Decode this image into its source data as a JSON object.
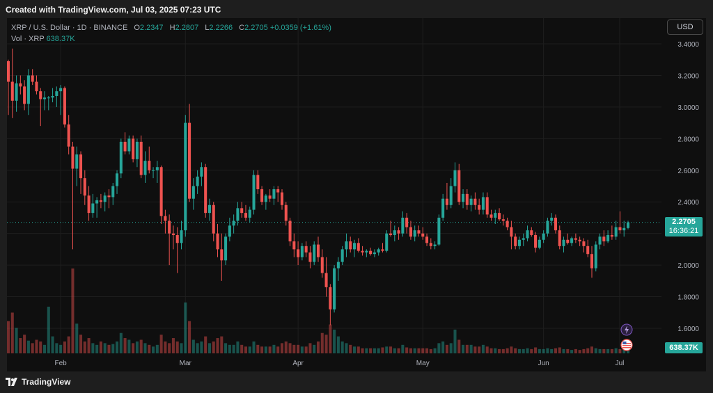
{
  "header": {
    "created": "Created with TradingView.com, Jul 03, 2025 07:23 UTC"
  },
  "legend": {
    "symbol": "XRP / U.S. Dollar · 1D · BINANCE",
    "o_label": "O",
    "o_value": "2.2347",
    "h_label": "H",
    "h_value": "2.2807",
    "l_label": "L",
    "l_value": "2.2266",
    "c_label": "C",
    "c_value": "2.2705",
    "change": "+0.0359 (+1.61%)",
    "vol_label": "Vol · XRP",
    "vol_value": "638.37K"
  },
  "currency_button": "USD",
  "last_price": {
    "price": "2.2705",
    "countdown": "16:36:21"
  },
  "volume_tag": "638.37K",
  "footer": {
    "brand": "TradingView"
  },
  "colors": {
    "up": "#26a69a",
    "down": "#ef5350",
    "background": "#0f0f0f",
    "grid": "#1f1f1f"
  },
  "icons": [
    "tradingview-logo-icon",
    "lightning-icon",
    "us-flag-icon"
  ],
  "chart_data": {
    "type": "candlestick",
    "symbol": "XRP / U.S. Dollar",
    "interval": "1D",
    "exchange": "BINANCE",
    "y_ticks": [
      "3.4000",
      "3.2000",
      "3.0000",
      "2.8000",
      "2.6000",
      "2.4000",
      "2.2000",
      "2.0000",
      "1.8000",
      "1.6000"
    ],
    "x_ticks": [
      "Feb",
      "Mar",
      "Apr",
      "May",
      "Jun",
      "Jul"
    ],
    "ylim": [
      1.45,
      3.5
    ],
    "grid": true,
    "last": 2.2705,
    "candles": [
      [
        3.29,
        3.3,
        2.95,
        3.16
      ],
      [
        3.16,
        3.37,
        2.93,
        3.04
      ],
      [
        3.04,
        3.2,
        2.97,
        3.15
      ],
      [
        3.15,
        3.2,
        3.08,
        3.13
      ],
      [
        3.13,
        3.17,
        2.98,
        3.02
      ],
      [
        3.02,
        3.24,
        2.95,
        3.2
      ],
      [
        3.2,
        3.24,
        3.14,
        3.16
      ],
      [
        3.16,
        3.2,
        3.08,
        3.1
      ],
      [
        3.1,
        3.12,
        2.88,
        3.05
      ],
      [
        3.05,
        3.1,
        2.98,
        3.06
      ],
      [
        3.06,
        3.07,
        2.98,
        3.06
      ],
      [
        3.06,
        3.12,
        3.03,
        3.07
      ],
      [
        3.07,
        3.13,
        3.0,
        3.1
      ],
      [
        3.1,
        3.14,
        2.95,
        3.12
      ],
      [
        3.12,
        3.13,
        2.87,
        2.89
      ],
      [
        2.89,
        2.95,
        2.7,
        2.75
      ],
      [
        2.75,
        2.78,
        2.1,
        2.61
      ],
      [
        2.61,
        2.75,
        2.5,
        2.7
      ],
      [
        2.7,
        2.72,
        2.45,
        2.55
      ],
      [
        2.55,
        2.6,
        2.38,
        2.44
      ],
      [
        2.44,
        2.5,
        2.28,
        2.33
      ],
      [
        2.33,
        2.45,
        2.3,
        2.39
      ],
      [
        2.39,
        2.43,
        2.3,
        2.41
      ],
      [
        2.41,
        2.45,
        2.36,
        2.4
      ],
      [
        2.4,
        2.46,
        2.34,
        2.44
      ],
      [
        2.44,
        2.48,
        2.36,
        2.43
      ],
      [
        2.43,
        2.52,
        2.38,
        2.5
      ],
      [
        2.5,
        2.6,
        2.45,
        2.58
      ],
      [
        2.58,
        2.8,
        2.55,
        2.78
      ],
      [
        2.78,
        2.84,
        2.7,
        2.72
      ],
      [
        2.72,
        2.82,
        2.7,
        2.8
      ],
      [
        2.8,
        2.82,
        2.65,
        2.67
      ],
      [
        2.67,
        2.8,
        2.62,
        2.78
      ],
      [
        2.78,
        2.82,
        2.55,
        2.57
      ],
      [
        2.57,
        2.72,
        2.52,
        2.66
      ],
      [
        2.66,
        2.75,
        2.58,
        2.6
      ],
      [
        2.6,
        2.62,
        2.55,
        2.6
      ],
      [
        2.6,
        2.66,
        2.52,
        2.62
      ],
      [
        2.62,
        2.63,
        2.26,
        2.31
      ],
      [
        2.31,
        2.35,
        2.2,
        2.28
      ],
      [
        2.28,
        2.32,
        2.0,
        2.2
      ],
      [
        2.2,
        2.25,
        2.1,
        2.19
      ],
      [
        2.19,
        2.24,
        1.95,
        2.14
      ],
      [
        2.14,
        2.28,
        2.1,
        2.22
      ],
      [
        2.22,
        2.95,
        2.18,
        2.9
      ],
      [
        2.9,
        3.02,
        2.4,
        2.42
      ],
      [
        2.42,
        2.55,
        2.35,
        2.5
      ],
      [
        2.5,
        2.6,
        2.45,
        2.56
      ],
      [
        2.56,
        2.65,
        2.5,
        2.62
      ],
      [
        2.62,
        2.64,
        2.3,
        2.33
      ],
      [
        2.33,
        2.42,
        2.28,
        2.38
      ],
      [
        2.38,
        2.4,
        2.15,
        2.2
      ],
      [
        2.2,
        2.26,
        2.05,
        2.1
      ],
      [
        2.1,
        2.2,
        1.9,
        2.03
      ],
      [
        2.03,
        2.2,
        2.0,
        2.18
      ],
      [
        2.18,
        2.3,
        2.15,
        2.25
      ],
      [
        2.25,
        2.32,
        2.2,
        2.28
      ],
      [
        2.28,
        2.4,
        2.25,
        2.36
      ],
      [
        2.36,
        2.4,
        2.3,
        2.33
      ],
      [
        2.33,
        2.38,
        2.28,
        2.3
      ],
      [
        2.3,
        2.37,
        2.27,
        2.35
      ],
      [
        2.35,
        2.6,
        2.32,
        2.57
      ],
      [
        2.57,
        2.6,
        2.45,
        2.48
      ],
      [
        2.48,
        2.5,
        2.38,
        2.4
      ],
      [
        2.4,
        2.45,
        2.35,
        2.44
      ],
      [
        2.44,
        2.48,
        2.4,
        2.42
      ],
      [
        2.42,
        2.5,
        2.38,
        2.48
      ],
      [
        2.48,
        2.5,
        2.4,
        2.46
      ],
      [
        2.46,
        2.48,
        2.35,
        2.38
      ],
      [
        2.38,
        2.4,
        2.25,
        2.28
      ],
      [
        2.28,
        2.3,
        2.12,
        2.15
      ],
      [
        2.15,
        2.2,
        2.05,
        2.1
      ],
      [
        2.1,
        2.15,
        2.0,
        2.05
      ],
      [
        2.05,
        2.14,
        2.03,
        2.12
      ],
      [
        2.12,
        2.15,
        2.05,
        2.08
      ],
      [
        2.08,
        2.12,
        1.98,
        2.02
      ],
      [
        2.02,
        2.15,
        2.0,
        2.13
      ],
      [
        2.13,
        2.18,
        2.02,
        2.05
      ],
      [
        2.05,
        2.1,
        1.92,
        1.95
      ],
      [
        1.95,
        2.05,
        1.8,
        1.86
      ],
      [
        1.86,
        1.88,
        1.62,
        1.72
      ],
      [
        1.72,
        2.0,
        1.7,
        1.98
      ],
      [
        1.98,
        2.05,
        1.9,
        2.02
      ],
      [
        2.02,
        2.12,
        2.0,
        2.1
      ],
      [
        2.1,
        2.2,
        2.05,
        2.15
      ],
      [
        2.15,
        2.18,
        2.08,
        2.1
      ],
      [
        2.1,
        2.16,
        2.05,
        2.14
      ],
      [
        2.14,
        2.17,
        2.08,
        2.09
      ],
      [
        2.09,
        2.12,
        2.06,
        2.08
      ],
      [
        2.08,
        2.1,
        2.05,
        2.09
      ],
      [
        2.09,
        2.11,
        2.06,
        2.07
      ],
      [
        2.07,
        2.1,
        2.05,
        2.08
      ],
      [
        2.08,
        2.11,
        2.06,
        2.1
      ],
      [
        2.1,
        2.14,
        2.08,
        2.09
      ],
      [
        2.09,
        2.22,
        2.08,
        2.2
      ],
      [
        2.2,
        2.28,
        2.18,
        2.19
      ],
      [
        2.19,
        2.25,
        2.15,
        2.22
      ],
      [
        2.22,
        2.24,
        2.16,
        2.2
      ],
      [
        2.2,
        2.34,
        2.18,
        2.3
      ],
      [
        2.3,
        2.33,
        2.2,
        2.24
      ],
      [
        2.24,
        2.28,
        2.16,
        2.18
      ],
      [
        2.18,
        2.25,
        2.15,
        2.22
      ],
      [
        2.22,
        2.25,
        2.18,
        2.2
      ],
      [
        2.2,
        2.24,
        2.16,
        2.18
      ],
      [
        2.18,
        2.2,
        2.12,
        2.14
      ],
      [
        2.14,
        2.17,
        2.1,
        2.12
      ],
      [
        2.12,
        2.15,
        2.1,
        2.13
      ],
      [
        2.13,
        2.32,
        2.12,
        2.3
      ],
      [
        2.3,
        2.45,
        2.28,
        2.42
      ],
      [
        2.42,
        2.52,
        2.35,
        2.38
      ],
      [
        2.38,
        2.55,
        2.36,
        2.5
      ],
      [
        2.5,
        2.65,
        2.46,
        2.6
      ],
      [
        2.6,
        2.64,
        2.38,
        2.4
      ],
      [
        2.4,
        2.48,
        2.36,
        2.45
      ],
      [
        2.45,
        2.48,
        2.35,
        2.38
      ],
      [
        2.38,
        2.44,
        2.34,
        2.42
      ],
      [
        2.42,
        2.46,
        2.35,
        2.38
      ],
      [
        2.38,
        2.42,
        2.32,
        2.35
      ],
      [
        2.35,
        2.46,
        2.32,
        2.43
      ],
      [
        2.43,
        2.46,
        2.3,
        2.32
      ],
      [
        2.32,
        2.35,
        2.28,
        2.3
      ],
      [
        2.3,
        2.35,
        2.26,
        2.33
      ],
      [
        2.33,
        2.36,
        2.28,
        2.29
      ],
      [
        2.29,
        2.32,
        2.25,
        2.28
      ],
      [
        2.28,
        2.3,
        2.22,
        2.24
      ],
      [
        2.24,
        2.28,
        2.1,
        2.18
      ],
      [
        2.18,
        2.2,
        2.1,
        2.12
      ],
      [
        2.12,
        2.18,
        2.1,
        2.16
      ],
      [
        2.16,
        2.2,
        2.12,
        2.17
      ],
      [
        2.17,
        2.25,
        2.15,
        2.22
      ],
      [
        2.22,
        2.24,
        2.18,
        2.19
      ],
      [
        2.19,
        2.21,
        2.08,
        2.11
      ],
      [
        2.11,
        2.18,
        2.1,
        2.16
      ],
      [
        2.16,
        2.22,
        2.14,
        2.2
      ],
      [
        2.2,
        2.3,
        2.18,
        2.28
      ],
      [
        2.28,
        2.33,
        2.25,
        2.3
      ],
      [
        2.3,
        2.32,
        2.2,
        2.22
      ],
      [
        2.22,
        2.25,
        2.1,
        2.12
      ],
      [
        2.12,
        2.18,
        2.08,
        2.16
      ],
      [
        2.16,
        2.2,
        2.13,
        2.14
      ],
      [
        2.14,
        2.18,
        2.12,
        2.17
      ],
      [
        2.17,
        2.2,
        2.14,
        2.16
      ],
      [
        2.16,
        2.18,
        2.12,
        2.15
      ],
      [
        2.15,
        2.17,
        2.08,
        2.12
      ],
      [
        2.12,
        2.16,
        2.05,
        2.07
      ],
      [
        2.07,
        2.12,
        1.92,
        1.98
      ],
      [
        1.98,
        2.15,
        1.96,
        2.13
      ],
      [
        2.13,
        2.2,
        2.1,
        2.18
      ],
      [
        2.18,
        2.22,
        2.12,
        2.15
      ],
      [
        2.15,
        2.22,
        2.14,
        2.19
      ],
      [
        2.19,
        2.25,
        2.16,
        2.18
      ],
      [
        2.18,
        2.28,
        2.16,
        2.24
      ],
      [
        2.24,
        2.34,
        2.2,
        2.22
      ],
      [
        2.22,
        2.28,
        2.18,
        2.2347
      ],
      [
        2.2347,
        2.2807,
        2.2266,
        2.2705
      ]
    ],
    "volume_note": "volume bars per candle, relative scale",
    "volumes": [
      0.38,
      0.48,
      0.3,
      0.18,
      0.22,
      0.15,
      0.12,
      0.16,
      0.14,
      0.1,
      0.55,
      0.2,
      0.12,
      0.1,
      0.14,
      0.2,
      1.0,
      0.35,
      0.22,
      0.14,
      0.18,
      0.12,
      0.1,
      0.14,
      0.12,
      0.1,
      0.11,
      0.14,
      0.24,
      0.18,
      0.16,
      0.12,
      0.14,
      0.16,
      0.12,
      0.1,
      0.08,
      0.1,
      0.22,
      0.14,
      0.12,
      0.18,
      0.14,
      0.12,
      0.6,
      0.38,
      0.16,
      0.12,
      0.14,
      0.2,
      0.12,
      0.14,
      0.18,
      0.2,
      0.12,
      0.1,
      0.1,
      0.14,
      0.1,
      0.08,
      0.08,
      0.14,
      0.1,
      0.08,
      0.08,
      0.08,
      0.1,
      0.08,
      0.12,
      0.14,
      0.12,
      0.1,
      0.1,
      0.08,
      0.08,
      0.12,
      0.1,
      0.14,
      0.24,
      0.22,
      0.34,
      0.28,
      0.2,
      0.14,
      0.12,
      0.1,
      0.08,
      0.08,
      0.06,
      0.06,
      0.06,
      0.06,
      0.06,
      0.07,
      0.08,
      0.08,
      0.06,
      0.06,
      0.1,
      0.07,
      0.06,
      0.06,
      0.06,
      0.06,
      0.06,
      0.05,
      0.06,
      0.12,
      0.14,
      0.1,
      0.12,
      0.28,
      0.16,
      0.1,
      0.1,
      0.1,
      0.08,
      0.08,
      0.1,
      0.08,
      0.06,
      0.06,
      0.05,
      0.05,
      0.06,
      0.08,
      0.06,
      0.05,
      0.05,
      0.06,
      0.05,
      0.07,
      0.05,
      0.05,
      0.06,
      0.05,
      0.06,
      0.07,
      0.05,
      0.05,
      0.04,
      0.05,
      0.04,
      0.05,
      0.06,
      0.08,
      0.06,
      0.05,
      0.05,
      0.05,
      0.05,
      0.06,
      0.05,
      0.05,
      0.04
    ]
  }
}
